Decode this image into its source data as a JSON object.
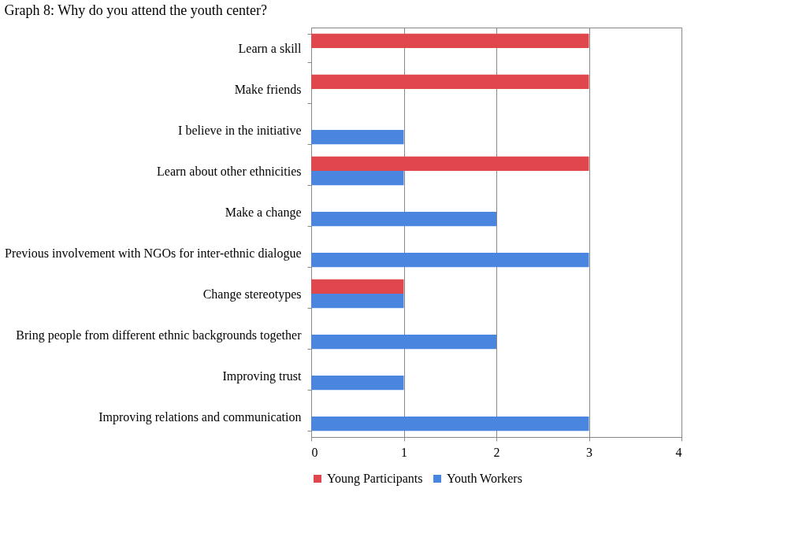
{
  "chart_data": {
    "type": "bar",
    "orientation": "horizontal",
    "title": "Graph 8: Why do you attend the youth center?",
    "categories": [
      "Learn a skill",
      "Make friends",
      "I believe in the initiative",
      "Learn about other ethnicities",
      "Make a change",
      "Previous involvement with NGOs for inter-ethnic dialogue",
      "Change stereotypes",
      "Bring people from different ethnic backgrounds together",
      "Improving trust",
      "Improving relations and communication"
    ],
    "series": [
      {
        "name": "Young Participants",
        "color": "#e0474c",
        "values": [
          3,
          3,
          null,
          3,
          null,
          null,
          1,
          null,
          null,
          null
        ]
      },
      {
        "name": "Youth Workers",
        "color": "#4a85e0",
        "values": [
          null,
          null,
          1,
          1,
          2,
          3,
          1,
          2,
          1,
          3
        ]
      }
    ],
    "xlim": [
      0,
      4
    ],
    "xticks": [
      0,
      1,
      2,
      3,
      4
    ],
    "grid": "x",
    "legend": "bottom"
  }
}
